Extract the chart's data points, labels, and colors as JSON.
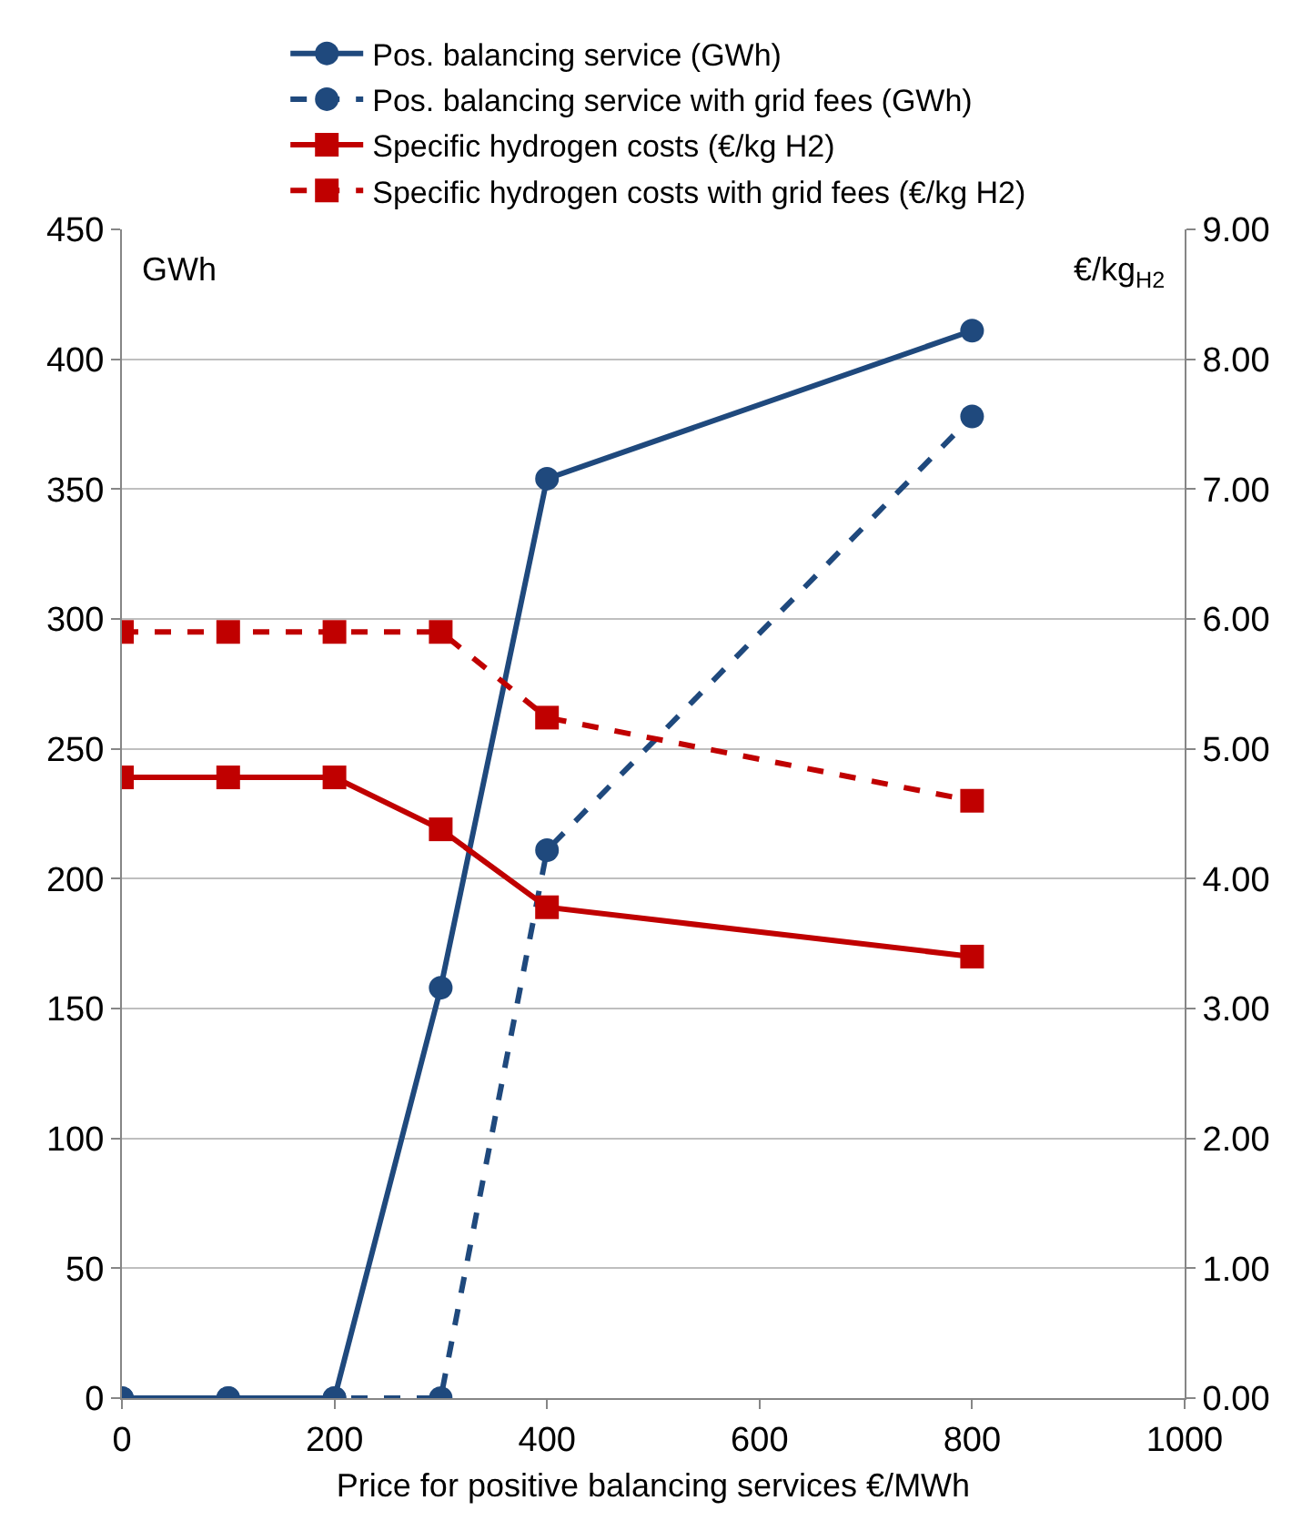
{
  "chart_data": {
    "type": "line",
    "xlabel": "Price for positive balancing services €/MWh",
    "ylabel": "GWh",
    "y2label": "€/kg$_{H2}$",
    "x": [
      0,
      100,
      200,
      300,
      400,
      800
    ],
    "series": [
      {
        "name": "Pos. balancing service (GWh)",
        "color": "#1f497d",
        "values": [
          0,
          0,
          0,
          158,
          354,
          411
        ],
        "marker": "circle",
        "line_style": "solid"
      },
      {
        "name": "Pos. balancing service with grid fees (GWh)",
        "color": "#1f497d",
        "values": [
          0,
          0,
          0,
          0,
          211,
          378
        ],
        "marker": "circle",
        "line_style": "dashed"
      },
      {
        "name": "Specific hydrogen costs (€/kg H2)",
        "color": "#c00000",
        "values": [
          4.78,
          4.78,
          4.78,
          4.38,
          3.78,
          3.4
        ],
        "marker": "square",
        "line_style": "solid",
        "axis": "y2"
      },
      {
        "name": "Specific hydrogen costs with grid fees (€/kg H2)",
        "color": "#c00000",
        "values": [
          5.9,
          5.9,
          5.9,
          5.9,
          5.24,
          4.6
        ],
        "marker": "square",
        "line_style": "dashed",
        "axis": "y2"
      }
    ],
    "xlim": [
      0,
      1000
    ],
    "xticks": [
      0,
      200,
      400,
      600,
      800,
      1000
    ],
    "ylim": [
      0,
      450
    ],
    "yticks": [
      0,
      50,
      100,
      150,
      200,
      250,
      300,
      350,
      400,
      450
    ],
    "y2lim": [
      0,
      9
    ],
    "y2ticks": [
      {
        "value": 0,
        "label": "0.00"
      },
      {
        "value": 1,
        "label": "1.00"
      },
      {
        "value": 2,
        "label": "2.00"
      },
      {
        "value": 3,
        "label": "3.00"
      },
      {
        "value": 4,
        "label": "4.00"
      },
      {
        "value": 5,
        "label": "5.00"
      },
      {
        "value": 6,
        "label": "6.00"
      },
      {
        "value": 7,
        "label": "7.00"
      },
      {
        "value": 8,
        "label": "8.00"
      },
      {
        "value": 9,
        "label": "9.00"
      }
    ],
    "grid": "y",
    "legend": "top"
  }
}
